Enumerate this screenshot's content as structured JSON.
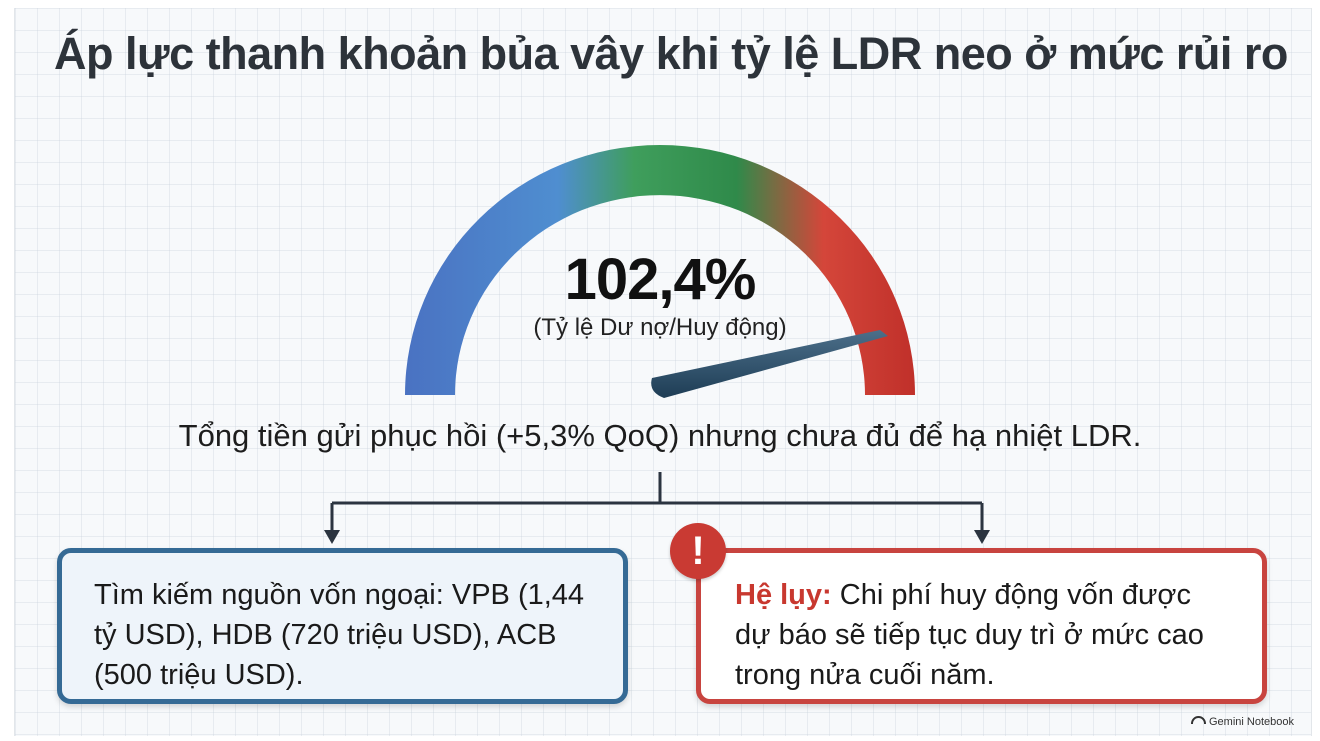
{
  "title": "Áp lực thanh khoản bủa vây khi tỷ lệ LDR neo ở mức rủi ro",
  "gauge": {
    "value_label": "102,4%",
    "caption": "(Tỷ lệ Dư nợ/Huy động)",
    "colors": [
      "#4a78c4",
      "#3fa05a",
      "#2f8a4a",
      "#d2382f"
    ]
  },
  "summary": "Tổng tiền gửi phục hồi (+5,3% QoQ) nhưng chưa đủ để hạ nhiệt LDR.",
  "left_box": {
    "text": "Tìm kiếm nguồn vốn ngoại: VPB (1,44 tỷ USD), HDB (720 triệu USD), ACB (500 triệu USD)."
  },
  "right_box": {
    "prefix": "Hệ lụy:",
    "text": " Chi phí huy động vốn được dự báo sẽ tiếp tục duy trì ở mức cao trong nửa cuối năm.",
    "icon": "!"
  },
  "brand": "Gemini Notebook"
}
